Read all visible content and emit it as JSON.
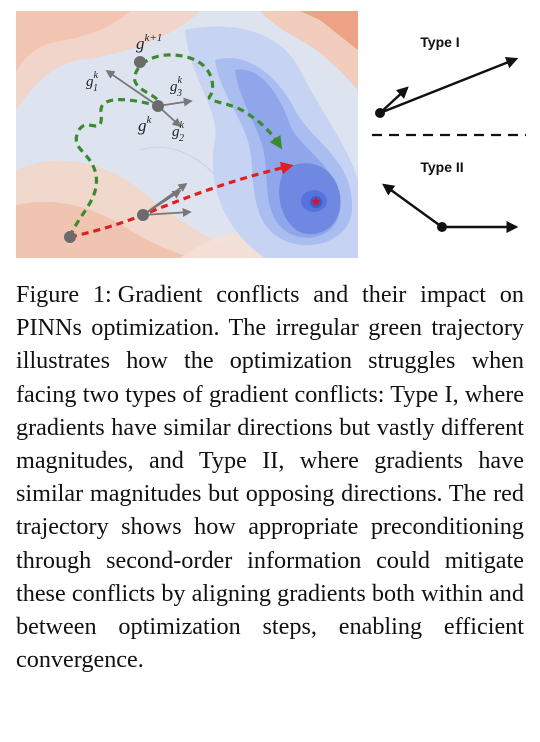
{
  "figure": {
    "labels": {
      "g_k1_base": "g",
      "g_k1_sup": "k+1",
      "g1_base": "g",
      "g1_sup": "k",
      "g1_sub": "1",
      "g3_base": "g",
      "g3_sup": "k",
      "g3_sub": "3",
      "gk_base": "g",
      "gk_sup": "k",
      "g2_base": "g",
      "g2_sup": "k",
      "g2_sub": "2",
      "star": "★"
    },
    "type_i_label": "Type I",
    "type_ii_label": "Type II",
    "colors": {
      "green_path": "#3a8a2e",
      "red_path": "#e02020",
      "arrow_gray": "#777777",
      "node_gray": "#6b6b6b",
      "star": "#e01010",
      "low_region": "#4f6fe0",
      "high_region": "#f3b8a0"
    }
  },
  "caption": {
    "label": "Figure 1:",
    "text": "Gradient conflicts and their impact on PINNs optimization. The irregular green trajectory illustrates how the optimization struggles when facing two types of gradient conflicts: Type I, where gradients have similar directions but vastly different magnitudes, and Type II, where gradients have similar magnitudes but opposing directions. The red trajectory shows how appropriate preconditioning through second-order information could mitigate these conflicts by aligning gradients both within and between optimization steps, enabling efficient convergence."
  }
}
